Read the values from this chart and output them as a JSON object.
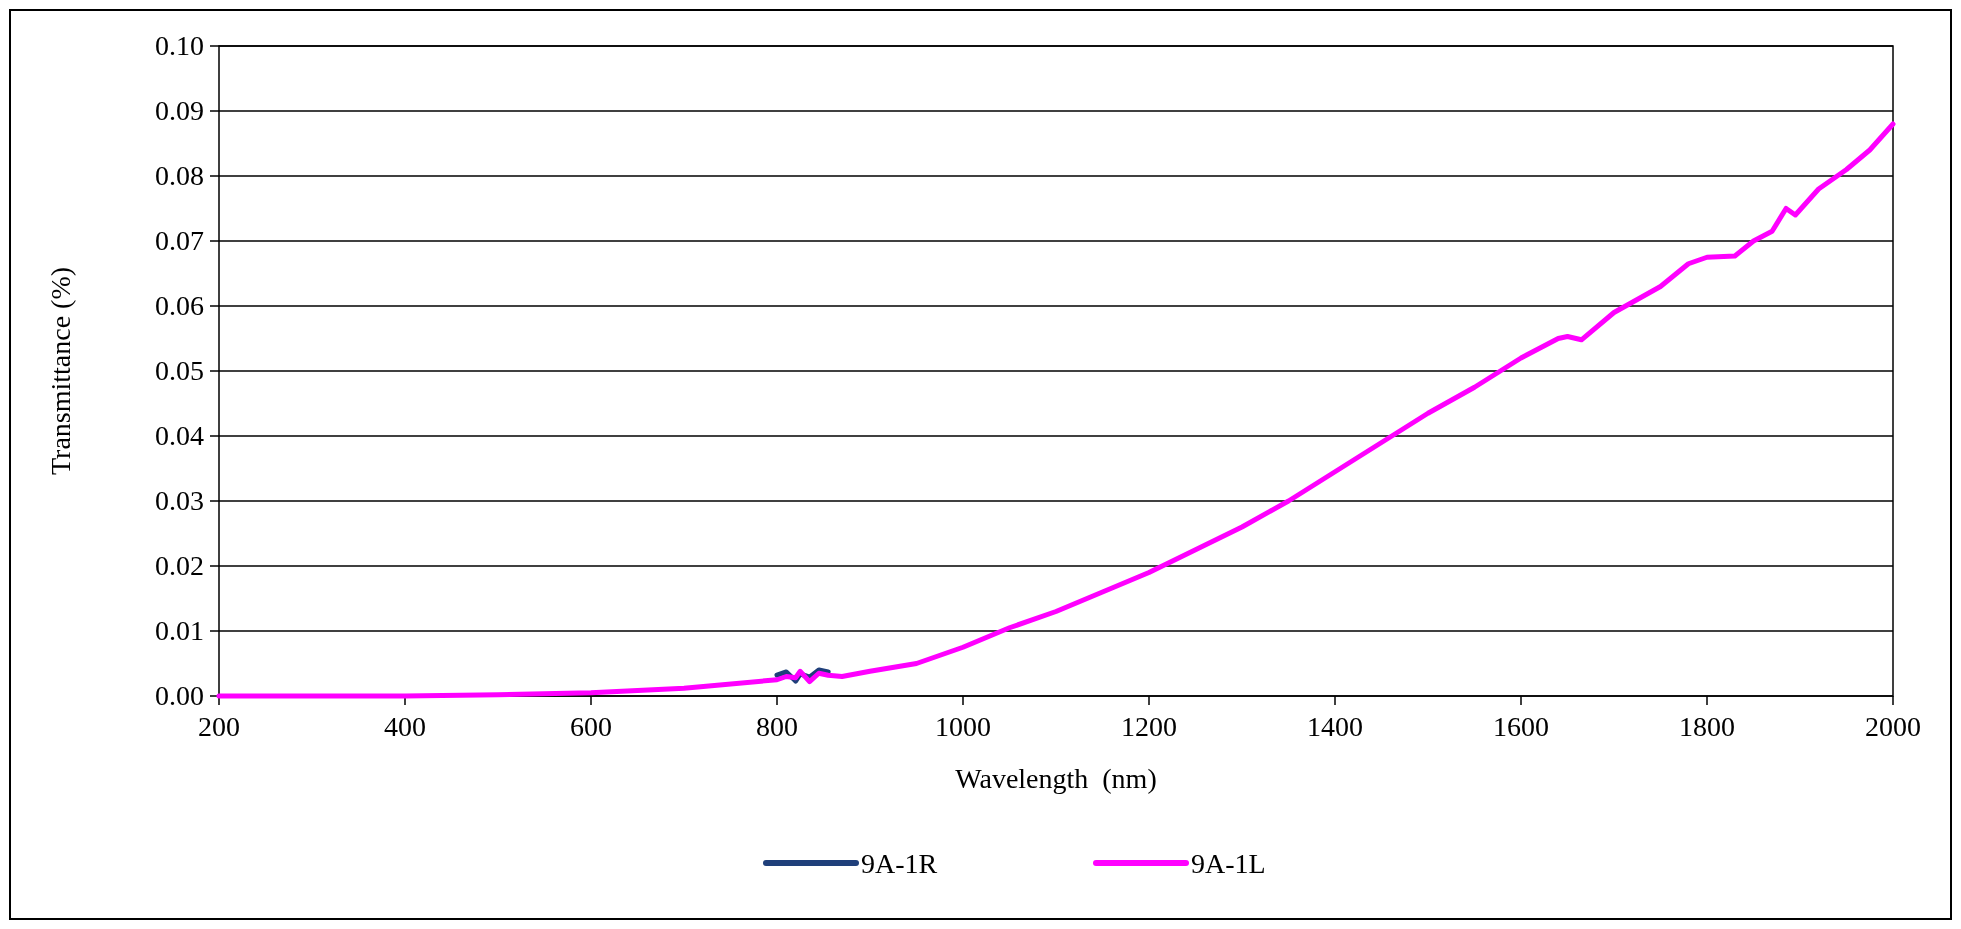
{
  "chart_data": {
    "type": "line",
    "xlabel": "Wavelength  (nm)",
    "ylabel": "Transmittance (%)",
    "xlim": [
      200,
      2000
    ],
    "xticks": [
      200,
      400,
      600,
      800,
      1000,
      1200,
      1400,
      1600,
      1800,
      2000
    ],
    "ylim": [
      0,
      0.1
    ],
    "yticks": [
      {
        "value": 0,
        "label": "0.00"
      },
      {
        "value": 0.01,
        "label": "0.01"
      },
      {
        "value": 0.02,
        "label": "0.02"
      },
      {
        "value": 0.03,
        "label": "0.03"
      },
      {
        "value": 0.04,
        "label": "0.04"
      },
      {
        "value": 0.05,
        "label": "0.05"
      },
      {
        "value": 0.06,
        "label": "0.06"
      },
      {
        "value": 0.07,
        "label": "0.07"
      },
      {
        "value": 0.08,
        "label": "0.08"
      },
      {
        "value": 0.09,
        "label": "0.09"
      },
      {
        "value": 0.1,
        "label": "0.10"
      }
    ],
    "grid": "y",
    "legend": "bottom",
    "line_style": "solid",
    "series": [
      {
        "name": "9A-1R",
        "color": "#1f3f7a",
        "x": [
          800,
          810,
          820,
          825,
          835,
          845,
          855
        ],
        "values": [
          0.0032,
          0.0037,
          0.0023,
          0.0034,
          0.0029,
          0.004,
          0.0037
        ]
      },
      {
        "name": "9A-1L",
        "color": "#ff00ff",
        "x": [
          200,
          400,
          500,
          600,
          700,
          800,
          810,
          820,
          825,
          835,
          845,
          855,
          870,
          900,
          950,
          1000,
          1050,
          1100,
          1150,
          1200,
          1250,
          1300,
          1350,
          1400,
          1450,
          1500,
          1550,
          1600,
          1640,
          1650,
          1665,
          1700,
          1750,
          1780,
          1800,
          1830,
          1850,
          1870,
          1885,
          1895,
          1920,
          1950,
          1975,
          2000
        ],
        "values": [
          0,
          0,
          0.0002,
          0.0005,
          0.0012,
          0.0025,
          0.003,
          0.0028,
          0.0038,
          0.0022,
          0.0035,
          0.0032,
          0.003,
          0.0038,
          0.005,
          0.0075,
          0.0105,
          0.013,
          0.016,
          0.019,
          0.0225,
          0.026,
          0.03,
          0.0345,
          0.039,
          0.0435,
          0.0475,
          0.052,
          0.055,
          0.0553,
          0.0548,
          0.059,
          0.063,
          0.0665,
          0.0675,
          0.0677,
          0.07,
          0.0715,
          0.075,
          0.074,
          0.078,
          0.081,
          0.084,
          0.088
        ]
      }
    ]
  }
}
